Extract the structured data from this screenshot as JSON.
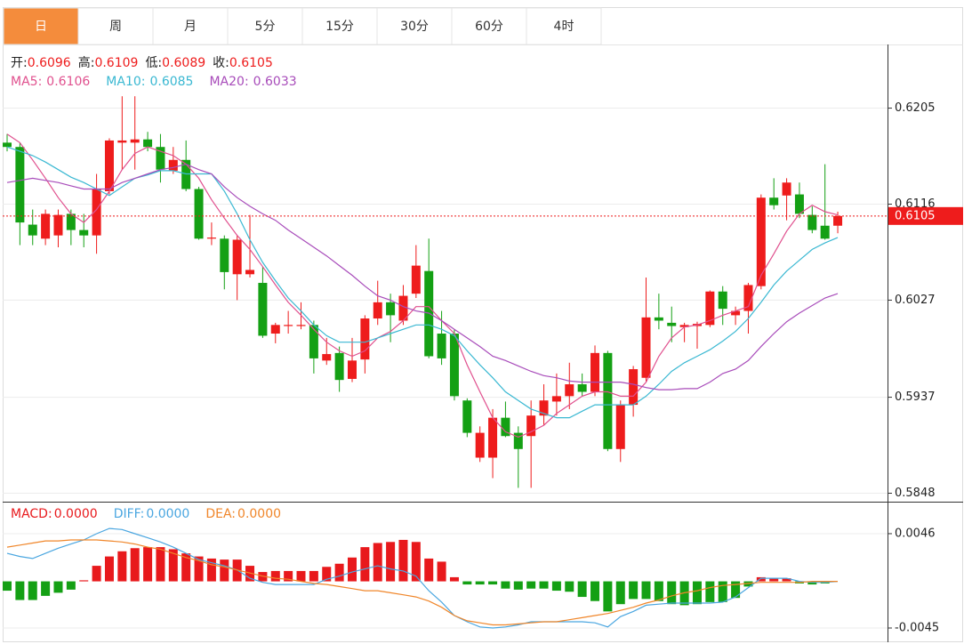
{
  "tabs": [
    "日",
    "周",
    "月",
    "5分",
    "15分",
    "30分",
    "60分",
    "4时"
  ],
  "active_tab": 0,
  "chart_data": [
    {
      "type": "candlestick",
      "up_color": "#ee1c1c",
      "down_color": "#14a014",
      "ohlc_header": [
        {
          "label": "开:",
          "value": 0.6096
        },
        {
          "label": "高:",
          "value": 0.6109
        },
        {
          "label": "低:",
          "value": 0.6089
        },
        {
          "label": "收:",
          "value": 0.6105
        }
      ],
      "last_price": 0.6105,
      "ylim": [
        0.5841,
        0.6264
      ],
      "yticks": [
        0.6205,
        0.6116,
        0.6027,
        0.5937,
        0.5848
      ],
      "grid": true,
      "open": [
        0.6173,
        0.6169,
        0.6097,
        0.6084,
        0.6087,
        0.6107,
        0.6092,
        0.6087,
        0.6128,
        0.6173,
        0.6173,
        0.6176,
        0.6169,
        0.6147,
        0.6157,
        0.613,
        0.6084,
        0.6084,
        0.6051,
        0.6051,
        0.6043,
        0.5996,
        0.6003,
        0.6003,
        0.6004,
        0.5971,
        0.5978,
        0.5954,
        0.5972,
        0.601,
        0.6025,
        0.6008,
        0.6033,
        0.6054,
        0.5996,
        0.5996,
        0.5934,
        0.5881,
        0.5881,
        0.5918,
        0.5904,
        0.5901,
        0.592,
        0.5933,
        0.5938,
        0.5949,
        0.5942,
        0.5978,
        0.5889,
        0.593,
        0.5955,
        0.6011,
        0.6006,
        0.6002,
        0.6003,
        0.6004,
        0.6035,
        0.6013,
        0.6017,
        0.604,
        0.6122,
        0.6124,
        0.6125,
        0.6106,
        0.6096,
        0.6096
      ],
      "high": [
        0.6181,
        0.6173,
        0.6111,
        0.6111,
        0.6111,
        0.6111,
        0.6107,
        0.6144,
        0.6177,
        0.6216,
        0.6216,
        0.6183,
        0.6181,
        0.6169,
        0.6175,
        0.6132,
        0.6099,
        0.6087,
        0.6087,
        0.6106,
        0.6058,
        0.6006,
        0.6017,
        0.6025,
        0.6008,
        0.5992,
        0.5984,
        0.5992,
        0.6013,
        0.6045,
        0.6033,
        0.6041,
        0.6078,
        0.6084,
        0.6017,
        0.6,
        0.5936,
        0.591,
        0.5926,
        0.5933,
        0.591,
        0.5934,
        0.5949,
        0.5959,
        0.5969,
        0.5959,
        0.5985,
        0.598,
        0.5934,
        0.5966,
        0.6048,
        0.6033,
        0.6021,
        0.6006,
        0.6007,
        0.6036,
        0.604,
        0.6021,
        0.6043,
        0.6125,
        0.614,
        0.614,
        0.6136,
        0.6114,
        0.6153,
        0.6109
      ],
      "low": [
        0.6165,
        0.6078,
        0.6078,
        0.6078,
        0.6076,
        0.6078,
        0.6076,
        0.607,
        0.6125,
        0.6148,
        0.6148,
        0.6165,
        0.6136,
        0.6144,
        0.6128,
        0.6083,
        0.6078,
        0.6037,
        0.6027,
        0.6048,
        0.5992,
        0.5987,
        0.5996,
        0.6,
        0.5959,
        0.5967,
        0.5942,
        0.5951,
        0.5959,
        0.6004,
        0.5988,
        0.6004,
        0.6029,
        0.5973,
        0.5967,
        0.5934,
        0.59,
        0.5877,
        0.5862,
        0.59,
        0.5853,
        0.5853,
        0.5911,
        0.592,
        0.5926,
        0.5938,
        0.5938,
        0.5887,
        0.5877,
        0.5919,
        0.5951,
        0.6,
        0.5988,
        0.5988,
        0.5982,
        0.6002,
        0.6004,
        0.6004,
        0.5996,
        0.6037,
        0.6111,
        0.6101,
        0.6103,
        0.6089,
        0.6083,
        0.6089
      ],
      "close": [
        0.6169,
        0.6099,
        0.6087,
        0.6107,
        0.6106,
        0.6092,
        0.6087,
        0.613,
        0.6175,
        0.6175,
        0.6176,
        0.6169,
        0.6148,
        0.6157,
        0.613,
        0.6084,
        0.6085,
        0.6053,
        0.6083,
        0.6055,
        0.5994,
        0.6004,
        0.6004,
        0.6004,
        0.5973,
        0.5977,
        0.5953,
        0.5971,
        0.601,
        0.6025,
        0.6013,
        0.6031,
        0.6059,
        0.5975,
        0.5973,
        0.5938,
        0.5904,
        0.5904,
        0.5918,
        0.5901,
        0.5889,
        0.592,
        0.5934,
        0.5938,
        0.5949,
        0.5942,
        0.5978,
        0.5889,
        0.593,
        0.5963,
        0.6011,
        0.6008,
        0.6003,
        0.6004,
        0.6005,
        0.6035,
        0.6019,
        0.6017,
        0.6041,
        0.6122,
        0.6115,
        0.6136,
        0.6107,
        0.6092,
        0.6084,
        0.6105
      ],
      "series": [
        {
          "name": "MA5:",
          "color": "#e0508e",
          "current": 0.6106,
          "values": [
            0.6181,
            0.6173,
            0.6157,
            0.614,
            0.6122,
            0.6107,
            0.6099,
            0.6111,
            0.6128,
            0.6148,
            0.6163,
            0.6169,
            0.6165,
            0.6161,
            0.6153,
            0.614,
            0.612,
            0.6103,
            0.6087,
            0.6074,
            0.6058,
            0.6041,
            0.6025,
            0.6013,
            0.6,
            0.5988,
            0.598,
            0.5975,
            0.598,
            0.5992,
            0.5998,
            0.6008,
            0.6021,
            0.6021,
            0.6008,
            0.5996,
            0.5967,
            0.5942,
            0.5918,
            0.5905,
            0.59,
            0.5905,
            0.5911,
            0.5922,
            0.593,
            0.5938,
            0.5942,
            0.5942,
            0.5938,
            0.5938,
            0.5951,
            0.5975,
            0.5992,
            0.6002,
            0.6004,
            0.6008,
            0.6013,
            0.6017,
            0.6021,
            0.605,
            0.607,
            0.6091,
            0.6107,
            0.6115,
            0.6109,
            0.6106
          ]
        },
        {
          "name": "MA10:",
          "color": "#3ab8d2",
          "current": 0.6085,
          "values": [
            0.6169,
            0.6165,
            0.6161,
            0.6155,
            0.6148,
            0.6141,
            0.6136,
            0.613,
            0.6124,
            0.6132,
            0.614,
            0.6143,
            0.6147,
            0.6147,
            0.6144,
            0.6144,
            0.6144,
            0.6128,
            0.6107,
            0.6083,
            0.6062,
            0.6045,
            0.6029,
            0.6017,
            0.6004,
            0.5994,
            0.5988,
            0.5988,
            0.5988,
            0.5992,
            0.5996,
            0.6,
            0.6004,
            0.6004,
            0.6,
            0.5994,
            0.598,
            0.5967,
            0.5955,
            0.5942,
            0.5934,
            0.5926,
            0.5922,
            0.5918,
            0.5918,
            0.5924,
            0.593,
            0.593,
            0.593,
            0.593,
            0.5938,
            0.5949,
            0.5961,
            0.5969,
            0.5975,
            0.5981,
            0.5989,
            0.5998,
            0.601,
            0.6025,
            0.6041,
            0.6054,
            0.6064,
            0.6074,
            0.608,
            0.6085
          ]
        },
        {
          "name": "MA20:",
          "color": "#a84cba",
          "current": 0.6033,
          "values": [
            0.6136,
            0.6138,
            0.614,
            0.6138,
            0.6136,
            0.6133,
            0.613,
            0.613,
            0.613,
            0.6136,
            0.614,
            0.6144,
            0.6148,
            0.615,
            0.6153,
            0.6148,
            0.6144,
            0.6132,
            0.6122,
            0.6114,
            0.6107,
            0.6101,
            0.6092,
            0.6084,
            0.6076,
            0.6068,
            0.6059,
            0.605,
            0.604,
            0.6031,
            0.6027,
            0.6021,
            0.6017,
            0.6015,
            0.6008,
            0.6,
            0.5992,
            0.5984,
            0.5975,
            0.5971,
            0.5966,
            0.5961,
            0.5957,
            0.5955,
            0.5952,
            0.5951,
            0.5951,
            0.5951,
            0.5951,
            0.5949,
            0.5946,
            0.5944,
            0.5944,
            0.5945,
            0.5945,
            0.5951,
            0.5959,
            0.5963,
            0.5971,
            0.5984,
            0.5996,
            0.6007,
            0.6015,
            0.6022,
            0.6029,
            0.6033
          ]
        }
      ]
    },
    {
      "type": "macd",
      "histogram_name": "MACD:",
      "histogram_current": {
        "value": 0,
        "label": "0.0000"
      },
      "histogram_color": "#e8191c",
      "ylim": [
        -0.0057,
        0.0076
      ],
      "yticks": [
        0.0046,
        -0.0045
      ],
      "histogram": [
        -0.0009,
        -0.0018,
        -0.0018,
        -0.0014,
        -0.0011,
        -0.0008,
        0.0001,
        0.0015,
        0.0024,
        0.0029,
        0.0032,
        0.0033,
        0.0033,
        0.0031,
        0.0027,
        0.0024,
        0.0022,
        0.0021,
        0.0021,
        0.0015,
        0.0009,
        0.001,
        0.001,
        0.001,
        0.001,
        0.0014,
        0.0017,
        0.0023,
        0.0033,
        0.0037,
        0.0038,
        0.004,
        0.0038,
        0.0022,
        0.0019,
        0.0004,
        -0.0003,
        -0.0003,
        -0.0003,
        -0.0007,
        -0.0008,
        -0.0007,
        -0.0007,
        -0.0009,
        -0.001,
        -0.0015,
        -0.0019,
        -0.0029,
        -0.0022,
        -0.0017,
        -0.0017,
        -0.0019,
        -0.0022,
        -0.0023,
        -0.0022,
        -0.002,
        -0.002,
        -0.0016,
        -0.0005,
        0.0004,
        0.0003,
        0.0003,
        -0.0002,
        -0.0003,
        -0.0002,
        0
      ],
      "series": [
        {
          "name": "DIFF:",
          "color": "#4aa6e0",
          "current": {
            "value": 0,
            "label": "0.0000"
          },
          "values": [
            0.0027,
            0.0024,
            0.0022,
            0.0027,
            0.0032,
            0.0036,
            0.004,
            0.0046,
            0.0051,
            0.005,
            0.0046,
            0.0042,
            0.0038,
            0.0033,
            0.0027,
            0.0021,
            0.0018,
            0.0015,
            0.0011,
            0.0003,
            -0.0001,
            -0.0003,
            -0.0003,
            -0.0003,
            -0.0003,
            0.0002,
            0.0005,
            0.0009,
            0.0012,
            0.0015,
            0.0012,
            0.001,
            0.0005,
            -0.0009,
            -0.002,
            -0.0033,
            -0.0039,
            -0.0044,
            -0.0045,
            -0.0044,
            -0.0042,
            -0.0039,
            -0.0039,
            -0.0039,
            -0.0039,
            -0.0039,
            -0.004,
            -0.0044,
            -0.0034,
            -0.0029,
            -0.0023,
            -0.0022,
            -0.0021,
            -0.0021,
            -0.0021,
            -0.0021,
            -0.002,
            -0.0015,
            -0.0006,
            0.0003,
            0.0003,
            0.0003,
            0,
            -0.0001,
            -0.0001,
            0
          ]
        },
        {
          "name": "DEA:",
          "color": "#f0862a",
          "current": {
            "value": 0,
            "label": "0.0000"
          },
          "values": [
            0.0033,
            0.0035,
            0.0037,
            0.0039,
            0.0039,
            0.004,
            0.004,
            0.004,
            0.0039,
            0.0038,
            0.0036,
            0.0033,
            0.0031,
            0.0027,
            0.0023,
            0.002,
            0.0016,
            0.0014,
            0.0011,
            0.0008,
            0.0005,
            0.0003,
            0.0002,
            0,
            -0.0002,
            -0.0003,
            -0.0005,
            -0.0007,
            -0.0009,
            -0.0009,
            -0.0011,
            -0.0013,
            -0.0015,
            -0.0019,
            -0.0025,
            -0.0033,
            -0.0038,
            -0.004,
            -0.0042,
            -0.0042,
            -0.0041,
            -0.004,
            -0.0039,
            -0.0039,
            -0.0037,
            -0.0035,
            -0.0033,
            -0.0031,
            -0.0028,
            -0.0025,
            -0.0021,
            -0.0018,
            -0.0014,
            -0.0011,
            -0.0009,
            -0.0006,
            -0.0004,
            -0.0003,
            -0.0002,
            -0.0001,
            -0.0001,
            -0.0001,
            -0.0001,
            0,
            0,
            0
          ]
        }
      ]
    }
  ]
}
